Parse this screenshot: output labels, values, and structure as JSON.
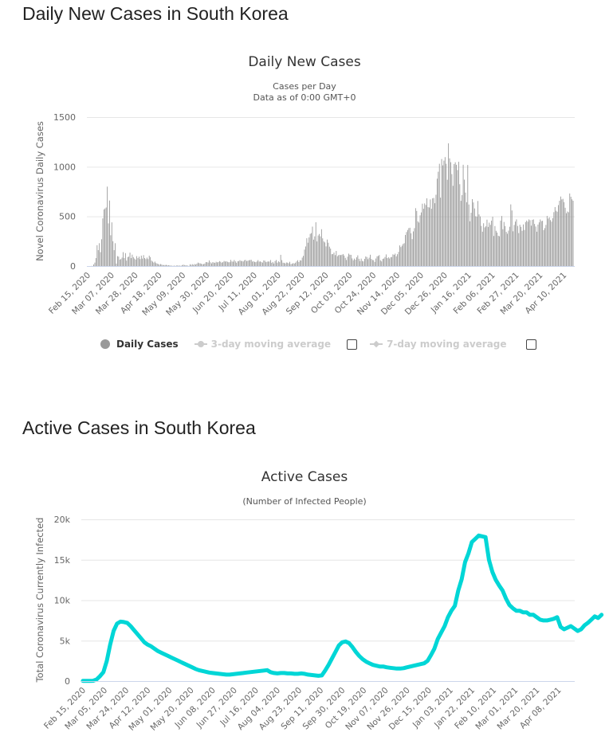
{
  "sections": {
    "daily_heading": "Daily New Cases in South Korea",
    "active_heading": "Active Cases in South Korea"
  },
  "daily_chart": {
    "title": "Daily New Cases",
    "subtitle_line1": "Cases per Day",
    "subtitle_line2": "Data as of 0:00 GMT+0",
    "legend": [
      {
        "label": "Daily Cases",
        "active": true
      },
      {
        "label": "3-day moving average",
        "active": false
      },
      {
        "label": "7-day moving average",
        "active": false
      }
    ]
  },
  "active_chart": {
    "title": "Active Cases",
    "subtitle": "(Number of Infected People)"
  },
  "colors": {
    "bar": "#999999",
    "line": "#00d6d6",
    "grid": "#e6e6e6",
    "axis": "#ccd6eb"
  },
  "chart_data": [
    {
      "type": "bar",
      "title": "Daily New Cases",
      "subtitle": "Cases per Day / Data as of 0:00 GMT+0",
      "xlabel": "",
      "ylabel": "Novel Coronavirus Daily Cases",
      "start_date": "Feb 15, 2020",
      "ylim": [
        0,
        1500
      ],
      "yticks": [
        0,
        500,
        1000,
        1500
      ],
      "xtick_labels": [
        "Feb 15, 2020",
        "Mar 07, 2020",
        "Mar 28, 2020",
        "Apr 18, 2020",
        "May 09, 2020",
        "May 30, 2020",
        "Jun 20, 2020",
        "Jul 11, 2020",
        "Aug 01, 2020",
        "Aug 22, 2020",
        "Sep 12, 2020",
        "Oct 03, 2020",
        "Oct 24, 2020",
        "Nov 14, 2020",
        "Dec 05, 2020",
        "Dec 26, 2020",
        "Jan 16, 2021",
        "Feb 06, 2021",
        "Feb 27, 2021",
        "Mar 20, 2021",
        "Apr 10, 2021"
      ],
      "grid": true,
      "legend_position": "bottom",
      "series": [
        {
          "name": "Daily Cases",
          "values": [
            0,
            0,
            0,
            1,
            1,
            16,
            35,
            80,
            210,
            160,
            230,
            140,
            270,
            480,
            570,
            580,
            590,
            800,
            430,
            660,
            310,
            440,
            250,
            160,
            230,
            25,
            100,
            95,
            65,
            70,
            85,
            140,
            80,
            130,
            55,
            90,
            95,
            135,
            80,
            115,
            90,
            75,
            65,
            100,
            80,
            95,
            70,
            105,
            75,
            110,
            80,
            70,
            85,
            70,
            105,
            90,
            55,
            45,
            35,
            45,
            30,
            25,
            20,
            15,
            20,
            15,
            10,
            10,
            10,
            12,
            9,
            8,
            6,
            5,
            3,
            2,
            4,
            2,
            5,
            6,
            4,
            4,
            3,
            8,
            14,
            10,
            6,
            9,
            3,
            2,
            18,
            12,
            19,
            12,
            20,
            15,
            24,
            35,
            29,
            27,
            23,
            19,
            20,
            25,
            40,
            39,
            35,
            57,
            38,
            27,
            39,
            36,
            32,
            43,
            37,
            40,
            50,
            43,
            34,
            40,
            51,
            45,
            48,
            43,
            38,
            39,
            62,
            46,
            44,
            61,
            47,
            33,
            48,
            50,
            59,
            51,
            51,
            46,
            59,
            62,
            50,
            54,
            58,
            61,
            63,
            45,
            48,
            42,
            39,
            46,
            60,
            44,
            47,
            40,
            35,
            57,
            54,
            39,
            44,
            46,
            45,
            61,
            33,
            41,
            26,
            50,
            61,
            34,
            48,
            39,
            113,
            60,
            34,
            33,
            26,
            36,
            34,
            28,
            43,
            20,
            23,
            30,
            25,
            34,
            47,
            59,
            40,
            58,
            56,
            85,
            103,
            166,
            197,
            280,
            235,
            288,
            324,
            332,
            397,
            266,
            299,
            441,
            248,
            308,
            323,
            299,
            371,
            279,
            248,
            238,
            198,
            267,
            235,
            195,
            176,
            119,
            121,
            136,
            110,
            152,
            99,
            109,
            113,
            110,
            114,
            121,
            106,
            82,
            61,
            95,
            125,
            114,
            113,
            77,
            58,
            75,
            64,
            88,
            108,
            73,
            50,
            75,
            51,
            47,
            72,
            97,
            91,
            69,
            84,
            114,
            72,
            61,
            59,
            41,
            76,
            98,
            102,
            110,
            58,
            47,
            72,
            76,
            91,
            117,
            80,
            89,
            76,
            89,
            91,
            118,
            113,
            125,
            98,
            119,
            143,
            208,
            191,
            205,
            223,
            230,
            313,
            343,
            363,
            382,
            386,
            330,
            271,
            349,
            382,
            583,
            555,
            450,
            438,
            511,
            540,
            628,
            577,
            631,
            615,
            682,
            594,
            590,
            671,
            577,
            682,
            686,
            633,
            718,
            880,
            950,
            1030,
            689,
            1078,
            1014,
            1062,
            1097,
            1030,
            869,
            1236,
            1084,
            1046,
            926,
            808,
            1027,
            1045,
            1020,
            967,
            1050,
            824,
            657,
            715,
            1020,
            870,
            740,
            643,
            1018,
            620,
            451,
            537,
            674,
            641,
            580,
            502,
            498,
            655,
            520,
            500,
            404,
            346,
            431,
            389,
            400,
            467,
            394,
            437,
            415,
            457,
            497,
            303,
            403,
            355,
            337,
            305,
            300,
            458,
            504,
            371,
            444,
            403,
            344,
            326,
            357,
            396,
            621,
            560,
            350,
            414,
            448,
            470,
            404,
            332,
            416,
            395,
            355,
            419,
            363,
            443,
            458,
            446,
            470,
            462,
            407,
            465,
            470,
            424,
            398,
            346,
            418,
            440,
            469,
            452,
            456,
            362,
            382,
            414,
            505,
            478,
            490,
            463,
            447,
            482,
            543,
            594,
            557,
            547,
            614,
            658,
            700,
            671,
            677,
            644,
            587,
            532,
            549,
            542,
            731,
            698,
            672,
            658
          ]
        }
      ]
    },
    {
      "type": "line",
      "title": "Active Cases",
      "subtitle": "(Number of Infected People)",
      "xlabel": "",
      "ylabel": "Total Coronavirus Currently Infected",
      "start_date": "Feb 15, 2020",
      "ylim": [
        0,
        20000
      ],
      "yticks": [
        0,
        5000,
        10000,
        15000,
        20000
      ],
      "ytick_labels": [
        "0",
        "5k",
        "10k",
        "15k",
        "20k"
      ],
      "xtick_labels": [
        "Feb 15, 2020",
        "Mar 05, 2020",
        "Mar 24, 2020",
        "Apr 12, 2020",
        "May 01, 2020",
        "May 20, 2020",
        "Jun 08, 2020",
        "Jun 27, 2020",
        "Jul 16, 2020",
        "Aug 04, 2020",
        "Aug 23, 2020",
        "Sep 11, 2020",
        "Sep 30, 2020",
        "Oct 19, 2020",
        "Nov 07, 2020",
        "Nov 26, 2020",
        "Dec 15, 2020",
        "Jan 03, 2021",
        "Jan 22, 2021",
        "Feb 10, 2021",
        "Mar 01, 2021",
        "Mar 20, 2021",
        "Apr 08, 2021"
      ],
      "grid": true,
      "series": [
        {
          "name": "Active Cases",
          "sample_every_days": 3,
          "values": [
            30,
            30,
            30,
            40,
            200,
            600,
            1100,
            2500,
            4500,
            6200,
            7100,
            7350,
            7300,
            7200,
            6800,
            6300,
            5800,
            5300,
            4800,
            4500,
            4300,
            4000,
            3700,
            3500,
            3300,
            3100,
            2900,
            2700,
            2500,
            2300,
            2100,
            1900,
            1700,
            1500,
            1350,
            1250,
            1150,
            1050,
            1000,
            950,
            900,
            850,
            800,
            800,
            850,
            900,
            950,
            1000,
            1050,
            1100,
            1150,
            1200,
            1250,
            1300,
            1350,
            1100,
            1000,
            950,
            1000,
            1000,
            950,
            950,
            900,
            900,
            950,
            900,
            800,
            750,
            700,
            650,
            700,
            1300,
            2000,
            2800,
            3600,
            4400,
            4800,
            4900,
            4700,
            4200,
            3600,
            3100,
            2700,
            2400,
            2200,
            2000,
            1900,
            1800,
            1800,
            1700,
            1650,
            1600,
            1550,
            1550,
            1600,
            1700,
            1800,
            1900,
            2000,
            2100,
            2200,
            2500,
            3200,
            4000,
            5200,
            6000,
            6800,
            7900,
            8700,
            9300,
            11200,
            12600,
            14700,
            15800,
            17200,
            17600,
            18000,
            17900,
            17800,
            15000,
            13500,
            12500,
            11800,
            11200,
            10200,
            9400,
            9000,
            8700,
            8700,
            8500,
            8500,
            8200,
            8200,
            7900,
            7600,
            7500,
            7500,
            7600,
            7700,
            7900,
            6700,
            6400,
            6600,
            6800,
            6500,
            6200,
            6400,
            6900,
            7200,
            7600,
            8000,
            7800,
            8200
          ]
        }
      ]
    }
  ]
}
